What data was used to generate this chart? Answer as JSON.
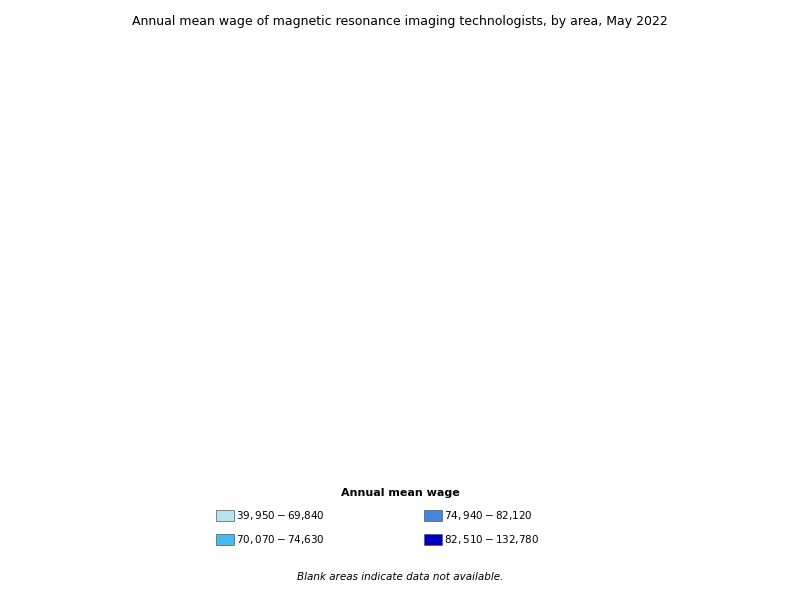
{
  "title": "Annual mean wage of magnetic resonance imaging technologists, by area, May 2022",
  "legend_title": "Annual mean wage",
  "legend_entries": [
    {
      "label": "$39,950 - $69,840",
      "color": "#b8e4f0"
    },
    {
      "label": "$74,940 - $82,120",
      "color": "#4488dd"
    },
    {
      "label": "$70,070 - $74,630",
      "color": "#44bbee"
    },
    {
      "label": "$82,510 - $132,780",
      "color": "#0000bb"
    }
  ],
  "blank_note": "Blank areas indicate data not available.",
  "background_color": "#ffffff",
  "border_color": "#333333",
  "no_data_color": "#ffffff",
  "figsize": [
    8.0,
    6.0
  ],
  "dpi": 100
}
